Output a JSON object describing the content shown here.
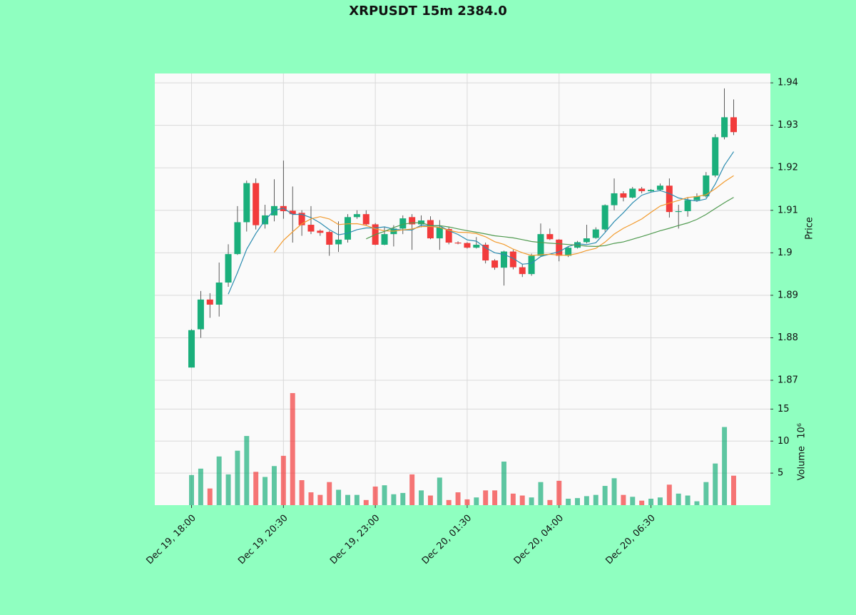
{
  "chart_data": {
    "type": "candlestick",
    "title": "XRPUSDT 15m 2384.0",
    "ylabel": "Price",
    "volume_label": "Volume",
    "volume_exponent": "10⁶",
    "open": [
      1.873,
      1.882,
      1.889,
      1.8878,
      1.893,
      1.8997,
      1.9072,
      1.9164,
      1.9067,
      1.9088,
      1.911,
      1.9099,
      1.9094,
      1.9066,
      1.9052,
      1.9049,
      1.902,
      1.9031,
      1.9084,
      1.9091,
      1.9067,
      1.9019,
      1.9044,
      1.9057,
      1.9084,
      1.9067,
      1.9077,
      1.9034,
      1.9056,
      1.9024,
      1.9023,
      1.9012,
      1.9019,
      1.8982,
      1.8965,
      1.9003,
      1.8966,
      1.895,
      1.8993,
      1.9044,
      1.9031,
      1.8993,
      1.9012,
      1.9025,
      1.9035,
      1.9055,
      1.9112,
      1.914,
      1.913,
      1.9151,
      1.9145,
      1.9148,
      1.9158,
      1.9096,
      1.9098,
      1.9124,
      1.9133,
      1.9182,
      1.9272,
      1.9319
    ],
    "high": [
      1.882,
      1.891,
      1.8905,
      1.8977,
      1.902,
      1.911,
      1.917,
      1.9175,
      1.9113,
      1.9173,
      1.9217,
      1.9156,
      1.91,
      1.911,
      1.9055,
      1.9052,
      1.9074,
      1.9091,
      1.91,
      1.91,
      1.907,
      1.9061,
      1.9065,
      1.9088,
      1.9091,
      1.9088,
      1.9086,
      1.9077,
      1.906,
      1.9027,
      1.9025,
      1.9037,
      1.9024,
      1.8985,
      1.9005,
      1.9007,
      1.8973,
      1.8998,
      1.9069,
      1.9057,
      1.9032,
      1.9015,
      1.9028,
      1.9066,
      1.906,
      1.9114,
      1.9175,
      1.9145,
      1.9155,
      1.9155,
      1.915,
      1.9163,
      1.9175,
      1.9113,
      1.9131,
      1.914,
      1.919,
      1.9279,
      1.9387,
      1.9361
    ],
    "low": [
      1.873,
      1.88,
      1.8847,
      1.885,
      1.892,
      1.8995,
      1.905,
      1.9055,
      1.9057,
      1.9074,
      1.908,
      1.9024,
      1.904,
      1.9044,
      1.904,
      1.8993,
      1.9002,
      1.9024,
      1.908,
      1.9065,
      1.9018,
      1.9018,
      1.9015,
      1.9044,
      1.9007,
      1.906,
      1.9032,
      1.9007,
      1.902,
      1.902,
      1.901,
      1.901,
      1.8975,
      1.896,
      1.8923,
      1.8961,
      1.8943,
      1.8946,
      1.899,
      1.903,
      1.898,
      1.899,
      1.901,
      1.9022,
      1.9033,
      1.905,
      1.91,
      1.9121,
      1.9128,
      1.914,
      1.9142,
      1.9145,
      1.9083,
      1.9057,
      1.9085,
      1.912,
      1.913,
      1.9178,
      1.9267,
      1.9277
    ],
    "close": [
      1.8818,
      1.889,
      1.8878,
      1.893,
      1.8997,
      1.9072,
      1.9164,
      1.9065,
      1.9088,
      1.911,
      1.9098,
      1.9091,
      1.9065,
      1.905,
      1.9047,
      1.9019,
      1.9031,
      1.9084,
      1.9091,
      1.9067,
      1.9019,
      1.9044,
      1.9057,
      1.9081,
      1.9067,
      1.9076,
      1.9034,
      1.906,
      1.9024,
      1.9022,
      1.9012,
      1.9019,
      1.8982,
      1.8965,
      1.9003,
      1.8966,
      1.895,
      1.8993,
      1.9044,
      1.9032,
      1.8993,
      1.9012,
      1.9025,
      1.9034,
      1.9055,
      1.9112,
      1.914,
      1.913,
      1.9151,
      1.9145,
      1.9148,
      1.9158,
      1.9096,
      1.9098,
      1.9124,
      1.9133,
      1.9182,
      1.9272,
      1.9319,
      1.9284
    ],
    "volume": [
      4.7,
      5.7,
      2.6,
      7.6,
      4.8,
      8.5,
      10.8,
      5.2,
      4.4,
      6.1,
      7.7,
      17.5,
      3.9,
      2.0,
      1.6,
      3.6,
      2.4,
      1.6,
      1.6,
      0.8,
      2.9,
      3.1,
      1.7,
      1.9,
      4.8,
      2.3,
      1.5,
      4.3,
      0.8,
      2.0,
      0.9,
      1.2,
      2.3,
      2.3,
      6.8,
      1.8,
      1.5,
      1.2,
      3.6,
      0.8,
      3.8,
      1.0,
      1.1,
      1.4,
      1.6,
      3.0,
      4.2,
      1.6,
      1.3,
      0.7,
      1.0,
      1.2,
      3.2,
      1.8,
      1.5,
      0.6,
      3.6,
      6.5,
      12.2,
      4.6
    ],
    "up_color": "#1aaf7b",
    "down_color": "#f23b3b",
    "mav": [
      5,
      10,
      20
    ],
    "mav_colors": [
      "#2b8cb0",
      "#f29b2e",
      "#4f9a4f"
    ],
    "xlim": [
      -4,
      63
    ],
    "xticks": [
      {
        "value": 0,
        "label": "Dec 19, 18:00"
      },
      {
        "value": 10,
        "label": "Dec 19, 20:30"
      },
      {
        "value": 20,
        "label": "Dec 19, 23:00"
      },
      {
        "value": 30,
        "label": "Dec 20, 01:30"
      },
      {
        "value": 40,
        "label": "Dec 20, 04:00"
      },
      {
        "value": 50,
        "label": "Dec 20, 06:30"
      }
    ],
    "ylim": [
      1.87,
      1.9422
    ],
    "yticks": [
      1.87,
      1.88,
      1.89,
      1.9,
      1.91,
      1.92,
      1.93,
      1.94
    ],
    "y2lim": [
      0,
      19.5
    ],
    "y2ticks": [
      5,
      10,
      15
    ],
    "grid": true
  }
}
